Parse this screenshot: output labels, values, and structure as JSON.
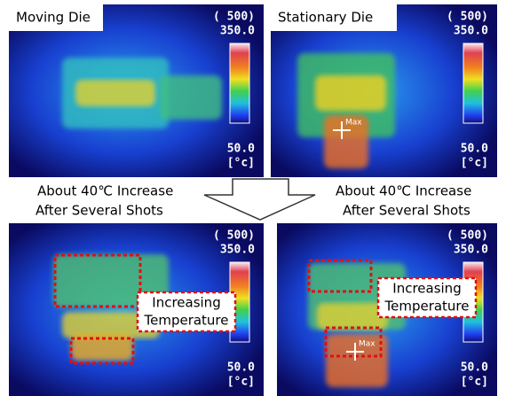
{
  "panels": [
    {
      "label": "Moving Die",
      "scale": {
        "range": "( 500)",
        "max": "350.0",
        "min": "50.0",
        "unit": "[°c]"
      }
    },
    {
      "label": "Stationary Die",
      "scale": {
        "range": "( 500)",
        "max": "350.0",
        "min": "50.0",
        "unit": "[°c]"
      },
      "marker": "Max"
    },
    {
      "scale": {
        "range": "( 500)",
        "max": "350.0",
        "min": "50.0",
        "unit": "[°c]"
      },
      "callout": [
        "Increasing",
        "Temperature"
      ]
    },
    {
      "scale": {
        "range": "( 500)",
        "max": "350.0",
        "min": "50.0",
        "unit": "[°c]"
      },
      "marker": "Max",
      "callout": [
        "Increasing",
        "Temperature"
      ]
    }
  ],
  "notes": [
    {
      "line1": "About  40℃ Increase",
      "line2": "After  Several  Shots"
    },
    {
      "line1": "About  40℃ Increase",
      "line2": "After  Several  Shots"
    }
  ]
}
